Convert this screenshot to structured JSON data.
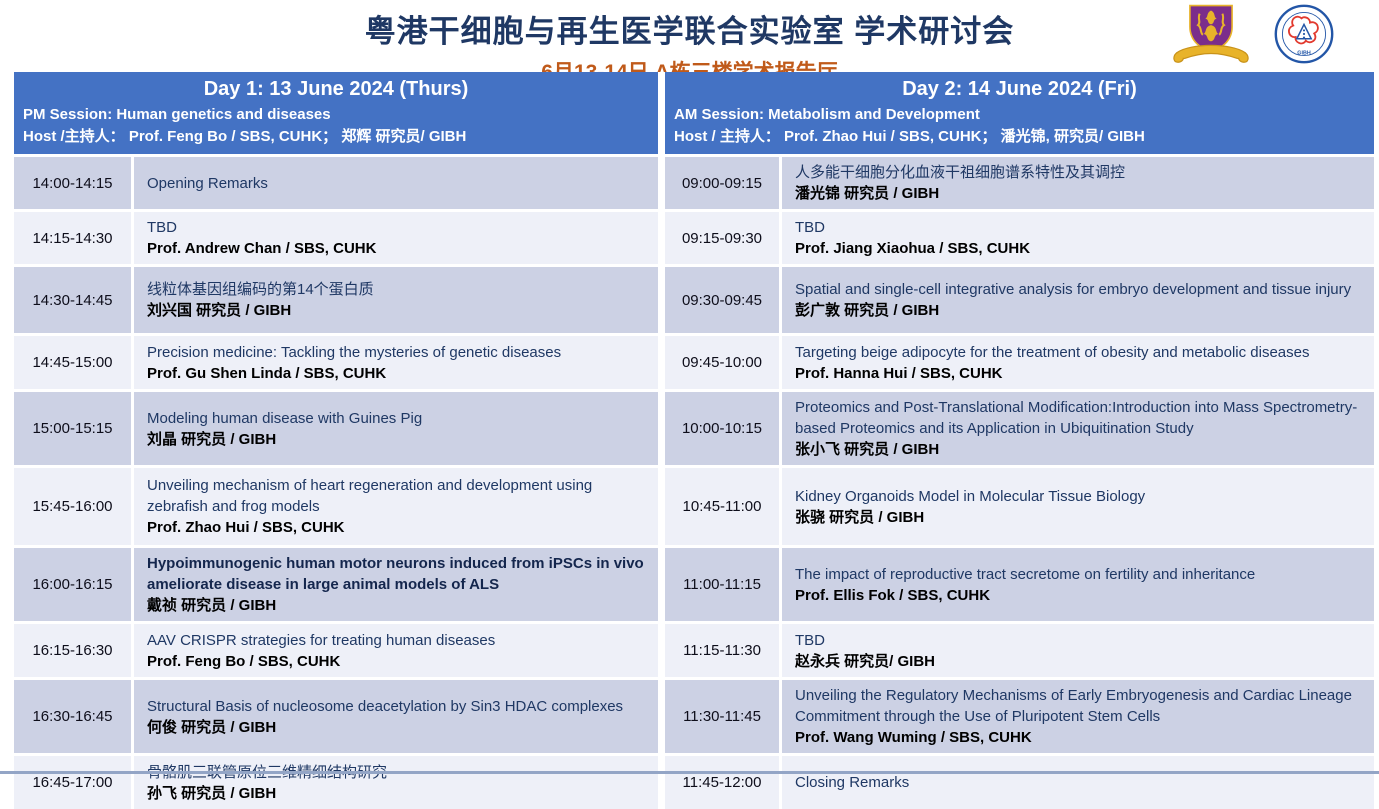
{
  "page": {
    "title": "粤港干细胞与再生医学联合实验室 学术研讨会",
    "subtitle": "6月13-14日   A栋三楼学术报告厅"
  },
  "logos": {
    "cuhk": "cuhk-crest",
    "gibh_label": "GIBH"
  },
  "colors": {
    "header_blue": "#4472c4",
    "row_lavender": "#ccd1e4",
    "row_light": "#eef0f8",
    "title_navy": "#1f3864",
    "subtitle_orange": "#c05a1a"
  },
  "days": [
    {
      "header": {
        "title": "Day 1: 13 June 2024 (Thurs)",
        "session": "PM Session: Human genetics and diseases",
        "host": "Host /主持人：  Prof. Feng Bo / SBS, CUHK；  郑辉 研究员/ GIBH"
      },
      "rows": [
        {
          "time": "14:00-14:15",
          "title": "Opening Remarks",
          "speaker": ""
        },
        {
          "time": "14:15-14:30",
          "title": "TBD",
          "speaker": "Prof. Andrew Chan / SBS, CUHK"
        },
        {
          "time": "14:30-14:45",
          "title": "线粒体基因组编码的第14个蛋白质",
          "speaker": "刘兴国 研究员 / GIBH"
        },
        {
          "time": "14:45-15:00",
          "title": "Precision medicine: Tackling the mysteries of genetic diseases",
          "speaker": "Prof. Gu Shen Linda / SBS, CUHK"
        },
        {
          "time": "15:00-15:15",
          "title": "Modeling human disease with Guines Pig",
          "speaker": "刘晶 研究员 / GIBH"
        },
        {
          "time": "15:45-16:00",
          "title": "Unveiling mechanism of heart regeneration and development using zebrafish and frog models",
          "speaker": "Prof. Zhao Hui / SBS, CUHK"
        },
        {
          "time": "16:00-16:15",
          "title": "Hypoimmunogenic human motor neurons induced from iPSCs in vivo ameliorate disease in large animal models of ALS",
          "speaker": "戴祯 研究员 / GIBH",
          "title_bold": true
        },
        {
          "time": "16:15-16:30",
          "title": "AAV CRISPR strategies for treating human diseases",
          "speaker": "Prof. Feng Bo / SBS, CUHK"
        },
        {
          "time": "16:30-16:45",
          "title": "Structural Basis of nucleosome deacetylation by Sin3 HDAC complexes",
          "speaker": "何俊 研究员 / GIBH"
        },
        {
          "time": "16:45-17:00",
          "title": "骨骼肌三联管原位三维精细结构研究",
          "speaker": "孙飞 研究员 / GIBH"
        }
      ]
    },
    {
      "header": {
        "title": "Day 2: 14 June 2024 (Fri)",
        "session": "AM Session:  Metabolism and Development",
        "host": "Host / 主持人：  Prof. Zhao Hui / SBS, CUHK；  潘光锦, 研究员/ GIBH"
      },
      "rows": [
        {
          "time": "09:00-09:15",
          "title": "人多能干细胞分化血液干祖细胞谱系特性及其调控",
          "speaker": "潘光锦 研究员 / GIBH"
        },
        {
          "time": "09:15-09:30",
          "title": "TBD",
          "speaker": "Prof. Jiang Xiaohua / SBS, CUHK"
        },
        {
          "time": "09:30-09:45",
          "title": "Spatial and single-cell integrative analysis for embryo development and tissue injury",
          "speaker": "彭广敦 研究员 / GIBH"
        },
        {
          "time": "09:45-10:00",
          "title": "Targeting beige adipocyte for the treatment of obesity and metabolic diseases",
          "speaker": "Prof. Hanna Hui / SBS, CUHK"
        },
        {
          "time": "10:00-10:15",
          "title": "Proteomics and Post-Translational Modification:Introduction into Mass Spectrometry-based Proteomics and its Application in Ubiquitination Study",
          "speaker": "张小飞 研究员 / GIBH"
        },
        {
          "time": "10:45-11:00",
          "title": "Kidney Organoids Model in Molecular Tissue Biology",
          "speaker": "张骁 研究员 / GIBH"
        },
        {
          "time": "11:00-11:15",
          "title": "The impact of reproductive tract secretome on fertility and inheritance",
          "speaker": "Prof. Ellis Fok / SBS, CUHK"
        },
        {
          "time": "11:15-11:30",
          "title": "TBD",
          "speaker": "赵永兵 研究员/ GIBH"
        },
        {
          "time": "11:30-11:45",
          "title": "Unveiling the Regulatory Mechanisms of Early Embryogenesis and Cardiac Lineage Commitment through the Use of Pluripotent Stem Cells",
          "speaker": "Prof. Wang Wuming / SBS, CUHK"
        },
        {
          "time": "11:45-12:00",
          "title": "Closing Remarks",
          "speaker": ""
        }
      ]
    }
  ]
}
